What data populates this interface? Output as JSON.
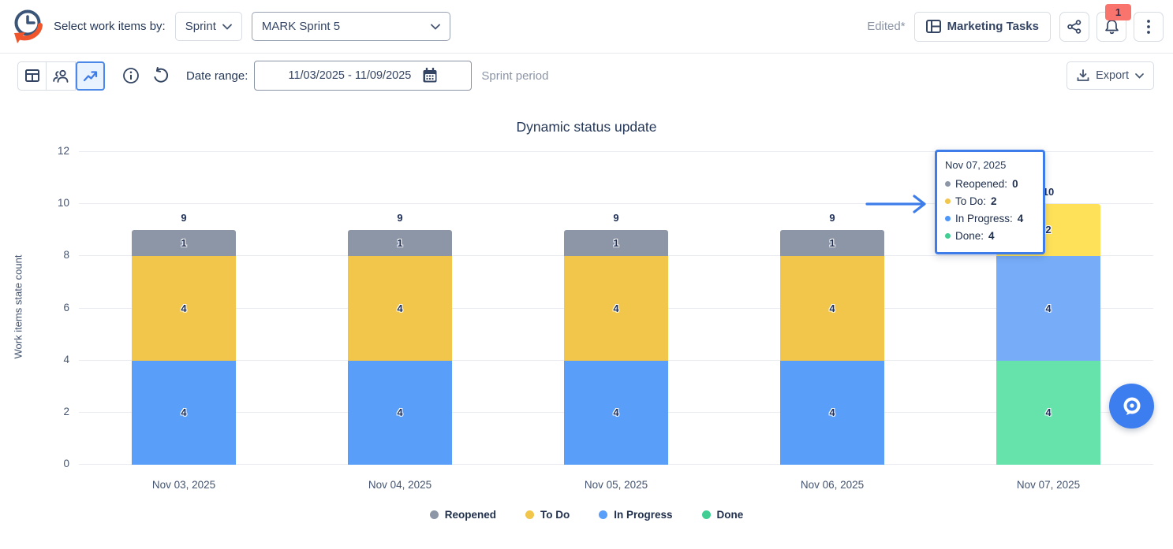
{
  "header": {
    "select_label": "Select work items by:",
    "mode_dropdown_value": "Sprint",
    "sprint_dropdown_value": "MARK Sprint 5",
    "edited_label": "Edited*",
    "board_button_label": "Marketing Tasks",
    "notification_count": "1"
  },
  "toolbar": {
    "date_range_label": "Date range:",
    "date_range_value": "11/03/2025 - 11/09/2025",
    "period_label": "Sprint period",
    "export_label": "Export"
  },
  "chart_data": {
    "type": "bar",
    "stacked": true,
    "title": "Dynamic status update",
    "ylabel": "Work items state count",
    "ylim": [
      0,
      12
    ],
    "yticks": [
      0,
      2,
      4,
      6,
      8,
      10,
      12
    ],
    "grid": "horizontal",
    "legend_position": "bottom",
    "categories": [
      "Nov 03, 2025",
      "Nov 04, 2025",
      "Nov 05, 2025",
      "Nov 06, 2025",
      "Nov 07, 2025"
    ],
    "series": [
      {
        "name": "Reopened",
        "color": "#8C96A6",
        "hover_color": "#9AA3B2",
        "values": [
          1,
          1,
          1,
          1,
          0
        ]
      },
      {
        "name": "To Do",
        "color": "#F1C64B",
        "hover_color": "#FFE159",
        "values": [
          4,
          4,
          4,
          4,
          2
        ]
      },
      {
        "name": "In Progress",
        "color": "#599EF8",
        "hover_color": "#77ADF8",
        "values": [
          4,
          4,
          4,
          4,
          4
        ]
      },
      {
        "name": "Done",
        "color": "#41CE93",
        "hover_color": "#66E3AB",
        "values": [
          0,
          0,
          0,
          0,
          4
        ]
      }
    ],
    "stack_order": [
      "Done",
      "In Progress",
      "To Do",
      "Reopened"
    ],
    "totals": [
      9,
      9,
      9,
      9,
      10
    ],
    "highlighted_category_index": 4
  },
  "tooltip": {
    "date": "Nov 07, 2025",
    "rows": [
      {
        "label": "Reopened",
        "value": "0",
        "color": "#8C96A6"
      },
      {
        "label": "To Do",
        "value": "2",
        "color": "#F1C64B"
      },
      {
        "label": "In Progress",
        "value": "4",
        "color": "#4D97F8"
      },
      {
        "label": "Done",
        "value": "4",
        "color": "#41CE93"
      }
    ]
  },
  "colors": {
    "accent_blue": "#3E7DE9",
    "selected_toggle_bg": "#E9F2FF",
    "badge_bg": "#F8746C",
    "text_navy": "#253858",
    "gridline": "#E9EBF0",
    "fab_bg": "#3C7DF0"
  }
}
